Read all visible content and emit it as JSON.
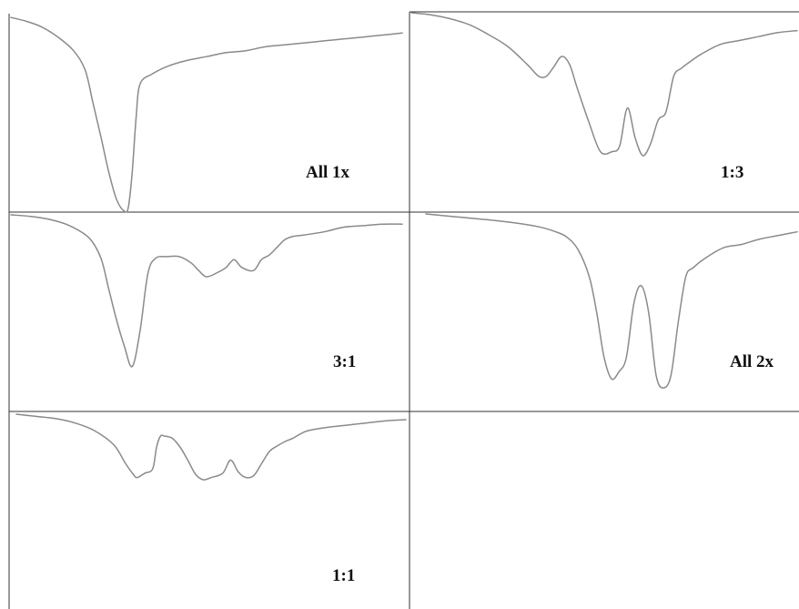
{
  "chart_data": [
    {
      "type": "line",
      "label": "All 1x",
      "x": [
        0,
        4,
        8,
        12,
        16,
        19,
        21,
        23,
        25,
        27,
        29,
        30,
        31,
        32,
        33,
        36,
        40,
        45,
        50,
        55,
        60,
        65,
        70,
        75,
        80,
        85,
        90,
        95,
        100
      ],
      "y": [
        0.99,
        0.97,
        0.94,
        0.89,
        0.82,
        0.72,
        0.55,
        0.38,
        0.2,
        0.06,
        0.0,
        0.02,
        0.2,
        0.48,
        0.65,
        0.7,
        0.74,
        0.77,
        0.79,
        0.81,
        0.82,
        0.84,
        0.85,
        0.86,
        0.87,
        0.88,
        0.89,
        0.9,
        0.91
      ]
    },
    {
      "type": "line",
      "label": "1:3",
      "x": [
        0,
        5,
        10,
        15,
        20,
        25,
        30,
        33,
        35,
        37,
        39,
        41,
        43,
        46,
        49,
        52,
        54,
        56,
        58,
        60,
        62,
        64,
        66,
        68,
        70,
        72,
        75,
        80,
        85,
        90,
        95,
        100
      ],
      "y": [
        1.0,
        0.99,
        0.97,
        0.94,
        0.89,
        0.83,
        0.74,
        0.68,
        0.68,
        0.73,
        0.78,
        0.74,
        0.62,
        0.45,
        0.3,
        0.3,
        0.33,
        0.52,
        0.37,
        0.28,
        0.34,
        0.46,
        0.5,
        0.68,
        0.72,
        0.75,
        0.79,
        0.84,
        0.86,
        0.88,
        0.9,
        0.91
      ]
    },
    {
      "type": "line",
      "label": "3:1",
      "x": [
        0,
        5,
        10,
        15,
        20,
        23,
        25,
        27,
        29,
        31,
        33,
        35,
        37,
        40,
        43,
        46,
        48,
        50,
        53,
        55,
        57,
        59,
        62,
        64,
        66,
        68,
        70,
        72,
        75,
        80,
        85,
        90,
        95,
        100
      ],
      "y": [
        1.0,
        0.99,
        0.97,
        0.93,
        0.85,
        0.72,
        0.52,
        0.32,
        0.15,
        0.02,
        0.25,
        0.62,
        0.72,
        0.73,
        0.73,
        0.69,
        0.64,
        0.6,
        0.63,
        0.66,
        0.71,
        0.66,
        0.64,
        0.71,
        0.74,
        0.79,
        0.84,
        0.86,
        0.87,
        0.89,
        0.92,
        0.93,
        0.94,
        0.94
      ]
    },
    {
      "type": "line",
      "label": "All 2x",
      "x": [
        0,
        10,
        20,
        30,
        35,
        38,
        41,
        44,
        46,
        48,
        50,
        52,
        54,
        56,
        58,
        60,
        62,
        64,
        66,
        68,
        70,
        72,
        75,
        80,
        85,
        90,
        95,
        100
      ],
      "y": [
        1.0,
        0.98,
        0.96,
        0.93,
        0.9,
        0.87,
        0.8,
        0.65,
        0.45,
        0.2,
        0.08,
        0.12,
        0.2,
        0.5,
        0.6,
        0.45,
        0.1,
        0.03,
        0.1,
        0.4,
        0.65,
        0.7,
        0.75,
        0.81,
        0.83,
        0.86,
        0.88,
        0.9
      ]
    },
    {
      "type": "line",
      "label": "1:1",
      "x": [
        0,
        5,
        10,
        15,
        20,
        25,
        28,
        30,
        31,
        33,
        35,
        36,
        37,
        38,
        40,
        42,
        44,
        46,
        48,
        50,
        53,
        55,
        57,
        59,
        61,
        63,
        65,
        67,
        69,
        71,
        73,
        75,
        80,
        85,
        90,
        95,
        100
      ],
      "y": [
        1.0,
        0.98,
        0.96,
        0.92,
        0.85,
        0.72,
        0.55,
        0.45,
        0.42,
        0.46,
        0.5,
        0.7,
        0.8,
        0.8,
        0.78,
        0.7,
        0.58,
        0.45,
        0.4,
        0.42,
        0.46,
        0.58,
        0.47,
        0.42,
        0.44,
        0.55,
        0.66,
        0.71,
        0.75,
        0.78,
        0.82,
        0.85,
        0.88,
        0.9,
        0.92,
        0.94,
        0.95
      ]
    }
  ],
  "colors": {
    "curve": "#8a8a8a",
    "frame": "#333333",
    "label": "#111111"
  }
}
